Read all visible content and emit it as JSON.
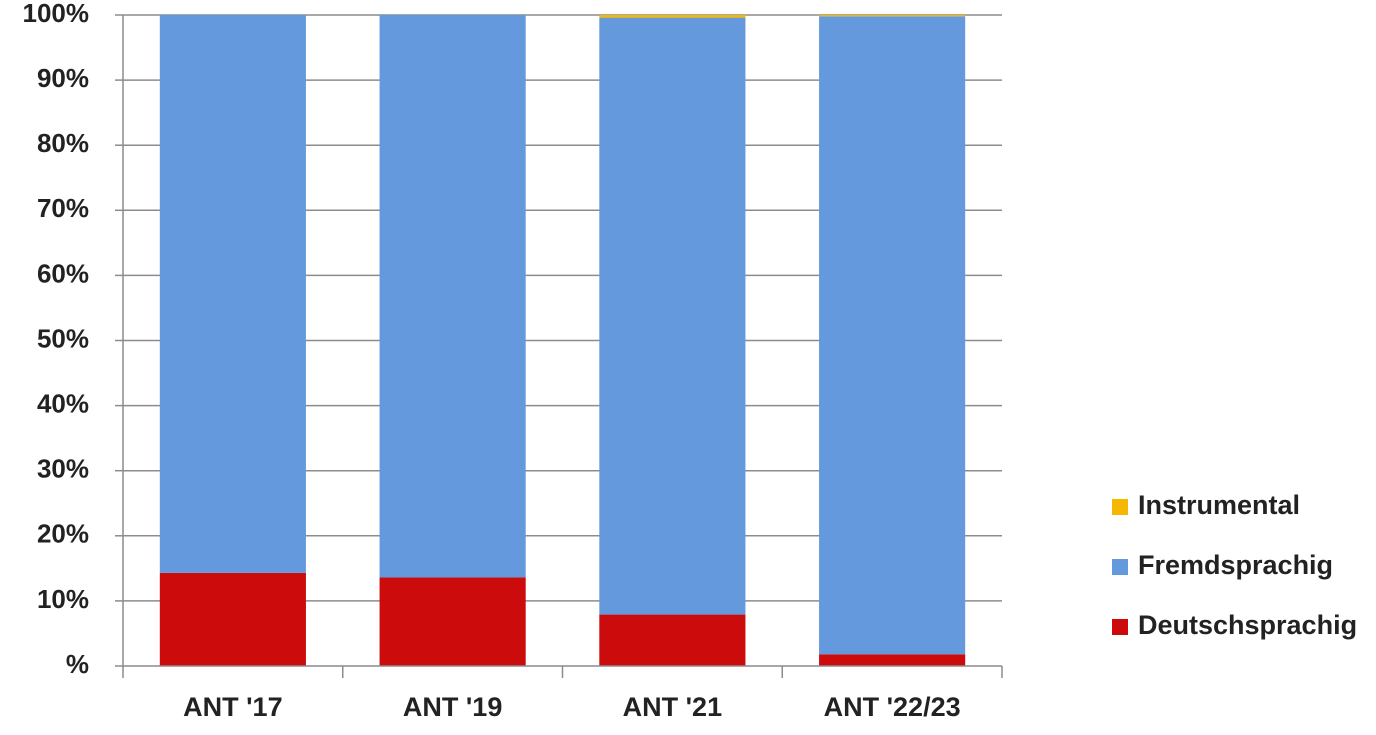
{
  "chart_data": {
    "type": "bar",
    "stacked": true,
    "categories": [
      "ANT '17",
      "ANT '19",
      "ANT '21",
      "ANT '22/23"
    ],
    "series": [
      {
        "name": "Deutschsprachig",
        "color": "#cc0c0c",
        "values": [
          14.3,
          13.6,
          7.9,
          1.8
        ]
      },
      {
        "name": "Fremdsprachig",
        "color": "#6499de",
        "values": [
          85.7,
          86.4,
          91.7,
          98.0
        ]
      },
      {
        "name": "Instrumental",
        "color": "#f4b800",
        "values": [
          0,
          0,
          0.4,
          0.2
        ]
      }
    ],
    "yticks": [
      "%",
      "10%",
      "20%",
      "30%",
      "40%",
      "50%",
      "60%",
      "70%",
      "80%",
      "90%",
      "100%"
    ],
    "ylim": [
      0,
      100
    ],
    "grid": true,
    "legend": {
      "position": "right",
      "order": [
        "Instrumental",
        "Fremdsprachig",
        "Deutschsprachig"
      ]
    },
    "title": "",
    "xlabel": "",
    "ylabel": ""
  }
}
